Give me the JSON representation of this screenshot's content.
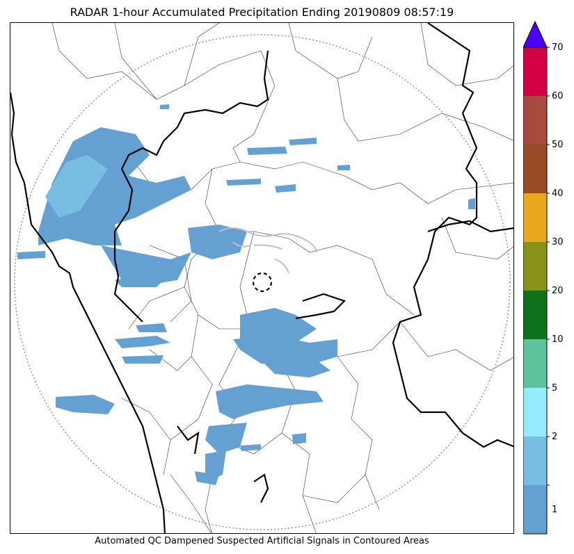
{
  "title": "RADAR 1-hour Accumulated Precipitation Ending 20190809 08:57:19",
  "caption": "Automated QC Dampened Suspected Artificial Signals in Contoured Areas",
  "colorbar": {
    "extend_color": "#4b00ff",
    "levels": [
      {
        "label": "1",
        "color": "#64a0d2"
      },
      {
        "label": "2",
        "color": "#78bde2"
      },
      {
        "label": "5",
        "color": "#95ecfe"
      },
      {
        "label": "10",
        "color": "#5cc39b"
      },
      {
        "label": "20",
        "color": "#0d7219"
      },
      {
        "label": "30",
        "color": "#8a9316"
      },
      {
        "label": "40",
        "color": "#e8a81d"
      },
      {
        "label": "50",
        "color": "#984b27"
      },
      {
        "label": "60",
        "color": "#a8493f"
      },
      {
        "label": "70",
        "color": "#d30043"
      }
    ]
  },
  "map": {
    "range_ring": "dotted grey",
    "boundaries": [
      "coastline",
      "state-borders",
      "district-borders"
    ],
    "radar_site_marker": "dashed-circle",
    "qc_contour_color": "#c0c0c0",
    "precip_color_light": "#64a0d2",
    "precip_color_mid": "#78bde2"
  }
}
